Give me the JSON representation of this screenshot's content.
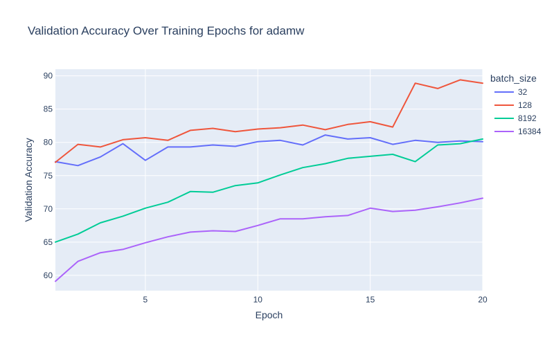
{
  "chart_data": {
    "type": "line",
    "title": "Validation Accuracy Over Training Epochs for adamw",
    "xlabel": "Epoch",
    "ylabel": "Validation Accuracy",
    "xlim": [
      1,
      20
    ],
    "ylim": [
      57.7,
      91
    ],
    "xticks": [
      5,
      10,
      15,
      20
    ],
    "yticks": [
      60,
      65,
      70,
      75,
      80,
      85,
      90
    ],
    "grid": true,
    "legend": {
      "title": "batch_size",
      "placement": "right"
    },
    "x": [
      1,
      2,
      3,
      4,
      5,
      6,
      7,
      8,
      9,
      10,
      11,
      12,
      13,
      14,
      15,
      16,
      17,
      18,
      19,
      20
    ],
    "series": [
      {
        "name": "32",
        "color": "#636efa",
        "values": [
          77.1,
          76.5,
          77.8,
          79.8,
          77.3,
          79.3,
          79.3,
          79.6,
          79.4,
          80.1,
          80.3,
          79.6,
          81.1,
          80.5,
          80.7,
          79.7,
          80.3,
          80.0,
          80.2,
          80.1
        ]
      },
      {
        "name": "128",
        "color": "#ef553b",
        "values": [
          77.0,
          79.7,
          79.3,
          80.4,
          80.7,
          80.3,
          81.8,
          82.1,
          81.6,
          82.0,
          82.2,
          82.6,
          81.9,
          82.7,
          83.1,
          82.3,
          88.9,
          88.1,
          89.4,
          88.9
        ]
      },
      {
        "name": "8192",
        "color": "#00cc96",
        "values": [
          65.0,
          66.2,
          67.9,
          68.9,
          70.1,
          71.0,
          72.6,
          72.5,
          73.5,
          73.9,
          75.1,
          76.2,
          76.8,
          77.6,
          77.9,
          78.2,
          77.1,
          79.6,
          79.8,
          80.5
        ]
      },
      {
        "name": "16384",
        "color": "#ab63fa",
        "values": [
          59.1,
          62.1,
          63.4,
          63.9,
          64.9,
          65.8,
          66.5,
          66.7,
          66.6,
          67.5,
          68.5,
          68.5,
          68.8,
          69.0,
          70.1,
          69.6,
          69.8,
          70.3,
          70.9,
          71.6
        ]
      }
    ]
  }
}
